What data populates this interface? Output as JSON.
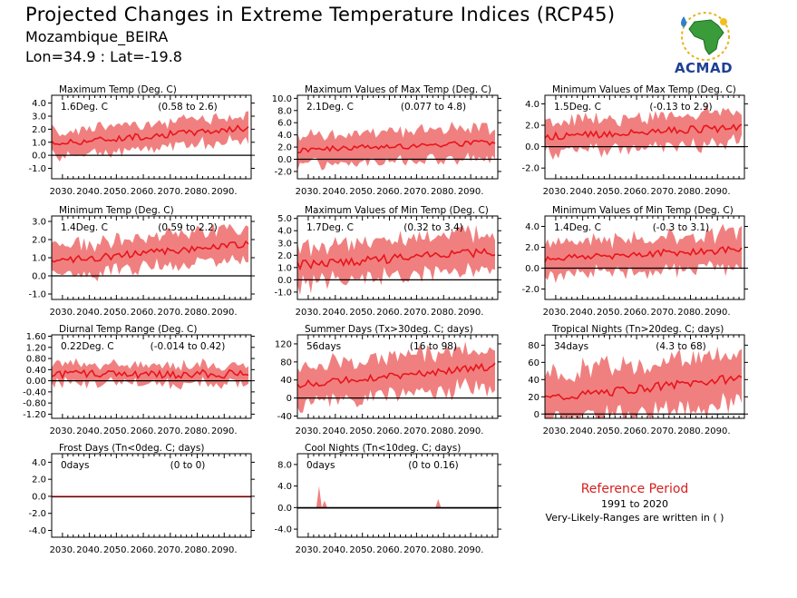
{
  "page": {
    "title": "Projected Changes in Extreme Temperature Indices (RCP45)",
    "location": "Mozambique_BEIRA",
    "coordinates": "Lon=34.9 : Lat=-19.8",
    "logo_text": "ACMAD"
  },
  "reference": {
    "title": "Reference Period",
    "years": "1991 to 2020",
    "note": "Very-Likely-Ranges are written in ( )"
  },
  "colors": {
    "median_line": "#e8141c",
    "range_fill": "#f08080",
    "zero_line": "#000000",
    "reference_title": "#d81e1e"
  },
  "x_ticks": [
    "2030.",
    "2040.",
    "2050.",
    "2060.",
    "2070.",
    "2080.",
    "2090."
  ],
  "chart_data": [
    {
      "type": "area",
      "title": "Maximum Temp (Deg. C)",
      "summary": "1.6Deg. C",
      "range": "(0.58 to 2.6)",
      "yticks": [
        "4.0",
        "3.0",
        "2.0",
        "1.0",
        "0.0",
        "-1.0"
      ],
      "ylim": [
        -1.8,
        4.6
      ],
      "xlim": [
        2026,
        2100
      ],
      "start": 0.9,
      "end": 2.1,
      "spread": 1.0,
      "noise": 0.25
    },
    {
      "type": "area",
      "title": "Maximum Values of Max Temp (Deg. C)",
      "summary": "2.1Deg. C",
      "range": "(0.077 to 4.8)",
      "yticks": [
        "10.0",
        "8.0",
        "6.0",
        "4.0",
        "2.0",
        "0.0",
        "-2.0"
      ],
      "ylim": [
        -3.2,
        10.5
      ],
      "xlim": [
        2026,
        2100
      ],
      "start": 1.5,
      "end": 2.8,
      "spread": 2.6,
      "noise": 0.5
    },
    {
      "type": "area",
      "title": "Minimum Values of Max Temp (Deg. C)",
      "summary": "1.5Deg. C",
      "range": "(-0.13 to 2.9)",
      "yticks": [
        "4.0",
        "2.0",
        "0.0",
        "-2.0"
      ],
      "ylim": [
        -3.0,
        4.8
      ],
      "xlim": [
        2026,
        2100
      ],
      "start": 0.9,
      "end": 1.8,
      "spread": 1.5,
      "noise": 0.35
    },
    {
      "type": "area",
      "title": "Minimum Temp (Deg. C)",
      "summary": "1.4Deg. C",
      "range": "(0.59 to 2.2)",
      "yticks": [
        "3.0",
        "2.0",
        "1.0",
        "0.0",
        "-1.0"
      ],
      "ylim": [
        -1.3,
        3.3
      ],
      "xlim": [
        2026,
        2100
      ],
      "start": 0.8,
      "end": 1.75,
      "spread": 0.9,
      "noise": 0.2
    },
    {
      "type": "area",
      "title": "Maximum Values of Min Temp (Deg. C)",
      "summary": "1.7Deg. C",
      "range": "(0.32 to 3.4)",
      "yticks": [
        "5.0",
        "4.0",
        "3.0",
        "2.0",
        "1.0",
        "0.0",
        "-1.0"
      ],
      "ylim": [
        -1.6,
        5.2
      ],
      "xlim": [
        2026,
        2100
      ],
      "start": 1.2,
      "end": 2.3,
      "spread": 1.6,
      "noise": 0.35
    },
    {
      "type": "area",
      "title": "Minimum Values of Min Temp (Deg. C)",
      "summary": "1.4Deg. C",
      "range": "(-0.3 to 3.1)",
      "yticks": [
        "4.0",
        "2.0",
        "0.0",
        "-2.0"
      ],
      "ylim": [
        -3.0,
        5.0
      ],
      "xlim": [
        2026,
        2100
      ],
      "start": 0.9,
      "end": 1.8,
      "spread": 1.7,
      "noise": 0.35
    },
    {
      "type": "area",
      "title": "Diurnal Temp Range (Deg. C)",
      "summary": "0.22Deg. C",
      "range": "(-0.014 to 0.42)",
      "yticks": [
        "1.60",
        "1.20",
        "0.80",
        "0.40",
        "0.00",
        "-0.40",
        "-0.80",
        "-1.20"
      ],
      "ylim": [
        -1.35,
        1.65
      ],
      "xlim": [
        2026,
        2100
      ],
      "start": 0.22,
      "end": 0.25,
      "spread": 0.35,
      "noise": 0.15
    },
    {
      "type": "area",
      "title": "Summer Days (Tx>30deg. C; days)",
      "summary": "56days",
      "range": "(16 to 98)",
      "yticks": [
        "120",
        "80",
        "40",
        "0",
        "-40"
      ],
      "ylim": [
        -45,
        140
      ],
      "xlim": [
        2026,
        2100
      ],
      "start": 30,
      "end": 70,
      "spread": 45,
      "noise": 8
    },
    {
      "type": "area",
      "title": "Tropical Nights (Tn>20deg. C; days)",
      "summary": "34days",
      "range": "(4.3 to 68)",
      "yticks": [
        "80",
        "60",
        "40",
        "20",
        "0"
      ],
      "ylim": [
        -5,
        92
      ],
      "xlim": [
        2026,
        2100
      ],
      "start": 18,
      "end": 42,
      "spread": 30,
      "noise": 5
    },
    {
      "type": "area",
      "title": "Frost Days (Tn<0deg. C; days)",
      "summary": "0days",
      "range": "(0 to 0)",
      "yticks": [
        "4.0",
        "2.0",
        "0.0",
        "-2.0",
        "-4.0"
      ],
      "ylim": [
        -4.8,
        5.0
      ],
      "xlim": [
        2026,
        2100
      ],
      "start": 0,
      "end": 0,
      "spread": 0,
      "noise": 0
    },
    {
      "type": "area",
      "title": "Cool Nights (Tn<10deg. C; days)",
      "summary": "0days",
      "range": "(0 to 0.16)",
      "yticks": [
        "8.0",
        "4.0",
        "0.0",
        "-4.0"
      ],
      "ylim": [
        -5.5,
        10.0
      ],
      "xlim": [
        2026,
        2100
      ],
      "start": 0,
      "end": 0,
      "spread": 0,
      "noise": 0,
      "spikes": [
        [
          2034,
          4.0
        ],
        [
          2036,
          1.3
        ],
        [
          2078,
          1.6
        ]
      ]
    }
  ]
}
